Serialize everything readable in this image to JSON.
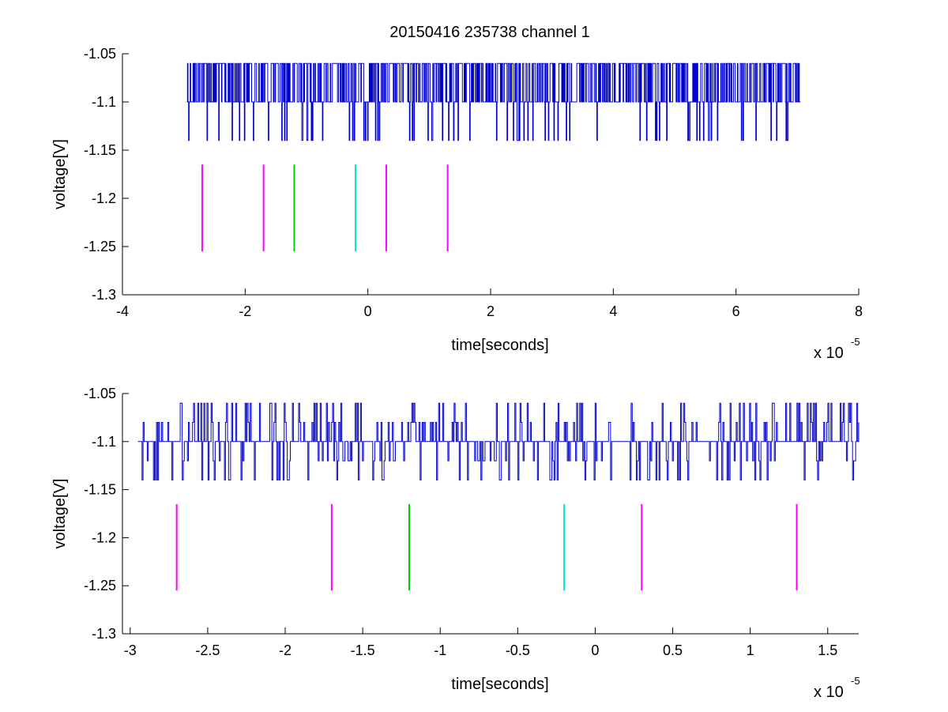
{
  "title": "20150416 235738 channel 1",
  "chart_data": [
    {
      "type": "line",
      "xlabel": "time[seconds]",
      "ylabel": "voltage[V]",
      "x_multiplier_label": "x 10",
      "x_multiplier_exp": "-5",
      "xlim": [
        -4,
        8
      ],
      "ylim": [
        -1.3,
        -1.05
      ],
      "xticks": [
        -4,
        -2,
        0,
        2,
        4,
        6,
        8
      ],
      "xtick_labels": [
        "-4",
        "-2",
        "0",
        "2",
        "4",
        "6",
        "8"
      ],
      "yticks": [
        -1.05,
        -1.1,
        -1.15,
        -1.2,
        -1.25,
        -1.3
      ],
      "ytick_labels": [
        "-1.05",
        "-1.1",
        "-1.15",
        "-1.2",
        "-1.25",
        "-1.3"
      ],
      "grid": false,
      "series": [
        {
          "color": "#0000cc",
          "levels": [
            -1.06,
            -1.1,
            -1.14
          ],
          "baseline": -1.1,
          "x_range": [
            -2.95,
            7.05
          ]
        }
      ],
      "markers": [
        {
          "x": -2.7,
          "y_range": [
            -1.255,
            -1.165
          ],
          "color": "#ff00ff"
        },
        {
          "x": -1.7,
          "y_range": [
            -1.255,
            -1.165
          ],
          "color": "#ff00ff"
        },
        {
          "x": -1.2,
          "y_range": [
            -1.255,
            -1.165
          ],
          "color": "#00cc00"
        },
        {
          "x": -0.2,
          "y_range": [
            -1.255,
            -1.165
          ],
          "color": "#00dddd"
        },
        {
          "x": 0.3,
          "y_range": [
            -1.255,
            -1.165
          ],
          "color": "#ff00ff"
        },
        {
          "x": 1.3,
          "y_range": [
            -1.255,
            -1.165
          ],
          "color": "#ff00ff"
        }
      ]
    },
    {
      "type": "line",
      "xlabel": "time[seconds]",
      "ylabel": "voltage[V]",
      "x_multiplier_label": "x 10",
      "x_multiplier_exp": "-5",
      "xlim": [
        -3.05,
        1.7
      ],
      "ylim": [
        -1.3,
        -1.05
      ],
      "xticks": [
        -3,
        -2.5,
        -2,
        -1.5,
        -1,
        -0.5,
        0,
        0.5,
        1,
        1.5
      ],
      "xtick_labels": [
        "-3",
        "-2.5",
        "-2",
        "-1.5",
        "-1",
        "-0.5",
        "0",
        "0.5",
        "1",
        "1.5"
      ],
      "yticks": [
        -1.05,
        -1.1,
        -1.15,
        -1.2,
        -1.25,
        -1.3
      ],
      "ytick_labels": [
        "-1.05",
        "-1.1",
        "-1.15",
        "-1.2",
        "-1.25",
        "-1.3"
      ],
      "grid": false,
      "series": [
        {
          "color": "#0000cc",
          "levels": [
            -1.06,
            -1.08,
            -1.1,
            -1.12,
            -1.14
          ],
          "baseline": -1.1,
          "x_range": [
            -2.95,
            1.7
          ]
        }
      ],
      "markers": [
        {
          "x": -2.7,
          "y_range": [
            -1.255,
            -1.165
          ],
          "color": "#ff00ff"
        },
        {
          "x": -1.7,
          "y_range": [
            -1.255,
            -1.165
          ],
          "color": "#ff00ff"
        },
        {
          "x": -1.2,
          "y_range": [
            -1.255,
            -1.165
          ],
          "color": "#00cc00"
        },
        {
          "x": -0.2,
          "y_range": [
            -1.255,
            -1.165
          ],
          "color": "#00dddd"
        },
        {
          "x": 0.3,
          "y_range": [
            -1.255,
            -1.165
          ],
          "color": "#ff00ff"
        },
        {
          "x": 1.3,
          "y_range": [
            -1.255,
            -1.165
          ],
          "color": "#ff00ff"
        }
      ]
    }
  ]
}
